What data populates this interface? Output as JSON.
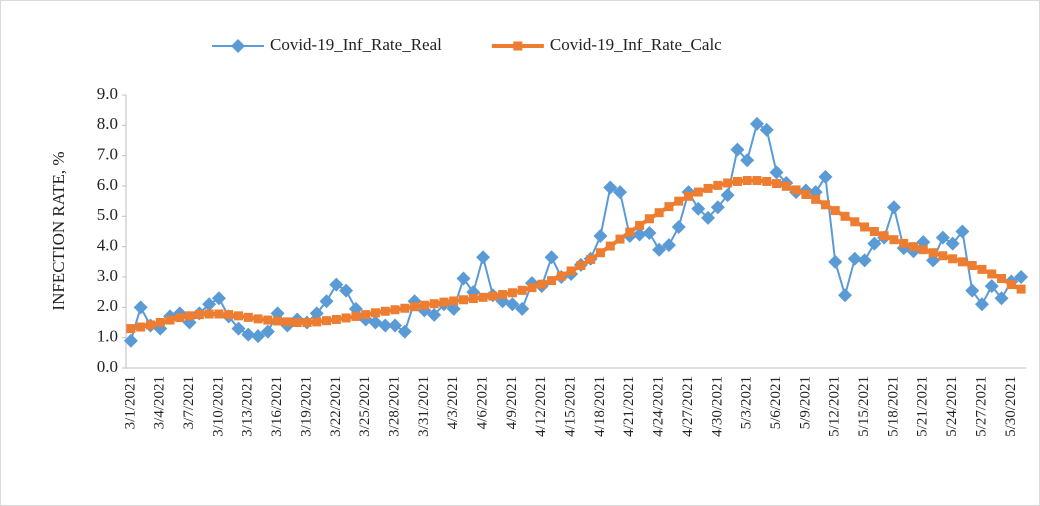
{
  "chart_data": {
    "type": "line",
    "y_label": "INFECTION RATE, %",
    "categories": [
      "3/1/2021",
      null,
      null,
      "3/4/2021",
      null,
      null,
      "3/7/2021",
      null,
      null,
      "3/10/2021",
      null,
      null,
      "3/13/2021",
      null,
      null,
      "3/16/2021",
      null,
      null,
      "3/19/2021",
      null,
      null,
      "3/22/2021",
      null,
      null,
      "3/25/2021",
      null,
      null,
      "3/28/2021",
      null,
      null,
      "3/31/2021",
      null,
      null,
      "4/3/2021",
      null,
      null,
      "4/6/2021",
      null,
      null,
      "4/9/2021",
      null,
      null,
      "4/12/2021",
      null,
      null,
      "4/15/2021",
      null,
      null,
      "4/18/2021",
      null,
      null,
      "4/21/2021",
      null,
      null,
      "4/24/2021",
      null,
      null,
      "4/27/2021",
      null,
      null,
      "4/30/2021",
      null,
      null,
      "5/3/2021",
      null,
      null,
      "5/6/2021",
      null,
      null,
      "5/9/2021",
      null,
      null,
      "5/12/2021",
      null,
      null,
      "5/15/2021",
      null,
      null,
      "5/18/2021",
      null,
      null,
      "5/21/2021",
      null,
      null,
      "5/24/2021",
      null,
      null,
      "5/27/2021",
      null,
      null,
      "5/30/2021",
      null
    ],
    "series": [
      {
        "name": "Covid-19_Inf_Rate_Real",
        "color": "#5b9bd5",
        "marker": "diamond",
        "values": [
          0.9,
          2.0,
          1.4,
          1.3,
          1.7,
          1.8,
          1.5,
          1.8,
          2.1,
          2.3,
          1.7,
          1.3,
          1.1,
          1.05,
          1.2,
          1.8,
          1.4,
          1.6,
          1.5,
          1.8,
          2.2,
          2.75,
          2.55,
          1.95,
          1.6,
          1.5,
          1.4,
          1.4,
          1.2,
          2.2,
          1.9,
          1.75,
          2.1,
          1.95,
          2.95,
          2.5,
          3.65,
          2.4,
          2.2,
          2.1,
          1.95,
          2.8,
          2.7,
          3.65,
          3.0,
          3.1,
          3.4,
          3.6,
          4.35,
          5.95,
          5.8,
          4.35,
          4.4,
          4.45,
          3.9,
          4.05,
          4.65,
          5.8,
          5.25,
          4.95,
          5.3,
          5.7,
          7.2,
          6.85,
          8.05,
          7.85,
          6.45,
          6.1,
          5.8,
          5.85,
          5.8,
          6.3,
          3.5,
          2.4,
          3.6,
          3.55,
          4.1,
          4.3,
          5.3,
          3.95,
          3.85,
          4.15,
          3.55,
          4.3,
          4.1,
          4.5,
          2.55,
          2.1,
          2.7,
          2.3,
          2.85,
          3.0
        ]
      },
      {
        "name": "Covid-19_Inf_Rate_Calc",
        "color": "#ed7d31",
        "marker": "square",
        "values": [
          1.3,
          1.35,
          1.42,
          1.5,
          1.58,
          1.66,
          1.72,
          1.76,
          1.78,
          1.78,
          1.76,
          1.72,
          1.67,
          1.62,
          1.58,
          1.55,
          1.52,
          1.5,
          1.5,
          1.52,
          1.56,
          1.6,
          1.65,
          1.7,
          1.76,
          1.82,
          1.87,
          1.92,
          1.97,
          2.02,
          2.07,
          2.12,
          2.17,
          2.21,
          2.25,
          2.29,
          2.33,
          2.37,
          2.42,
          2.48,
          2.56,
          2.65,
          2.76,
          2.88,
          3.03,
          3.2,
          3.38,
          3.58,
          3.8,
          4.02,
          4.25,
          4.48,
          4.7,
          4.92,
          5.12,
          5.32,
          5.5,
          5.66,
          5.8,
          5.92,
          6.02,
          6.1,
          6.15,
          6.18,
          6.18,
          6.15,
          6.08,
          5.99,
          5.87,
          5.72,
          5.56,
          5.38,
          5.19,
          5.0,
          4.82,
          4.65,
          4.5,
          4.36,
          4.23,
          4.11,
          4.0,
          3.9,
          3.8,
          3.7,
          3.6,
          3.5,
          3.38,
          3.25,
          3.1,
          2.95,
          2.75,
          2.6
        ]
      }
    ],
    "ylim": [
      0,
      9
    ],
    "yticks": [
      {
        "value": 0,
        "label": "0.0"
      },
      {
        "value": 1,
        "label": "1.0"
      },
      {
        "value": 2,
        "label": "2.0"
      },
      {
        "value": 3,
        "label": "3.0"
      },
      {
        "value": 4,
        "label": "4.0"
      },
      {
        "value": 5,
        "label": "5.0"
      },
      {
        "value": 6,
        "label": "6.0"
      },
      {
        "value": 7,
        "label": "7.0"
      },
      {
        "value": 8,
        "label": "8.0"
      },
      {
        "value": 9,
        "label": "9.0"
      }
    ],
    "legend": "top",
    "grid": false
  }
}
